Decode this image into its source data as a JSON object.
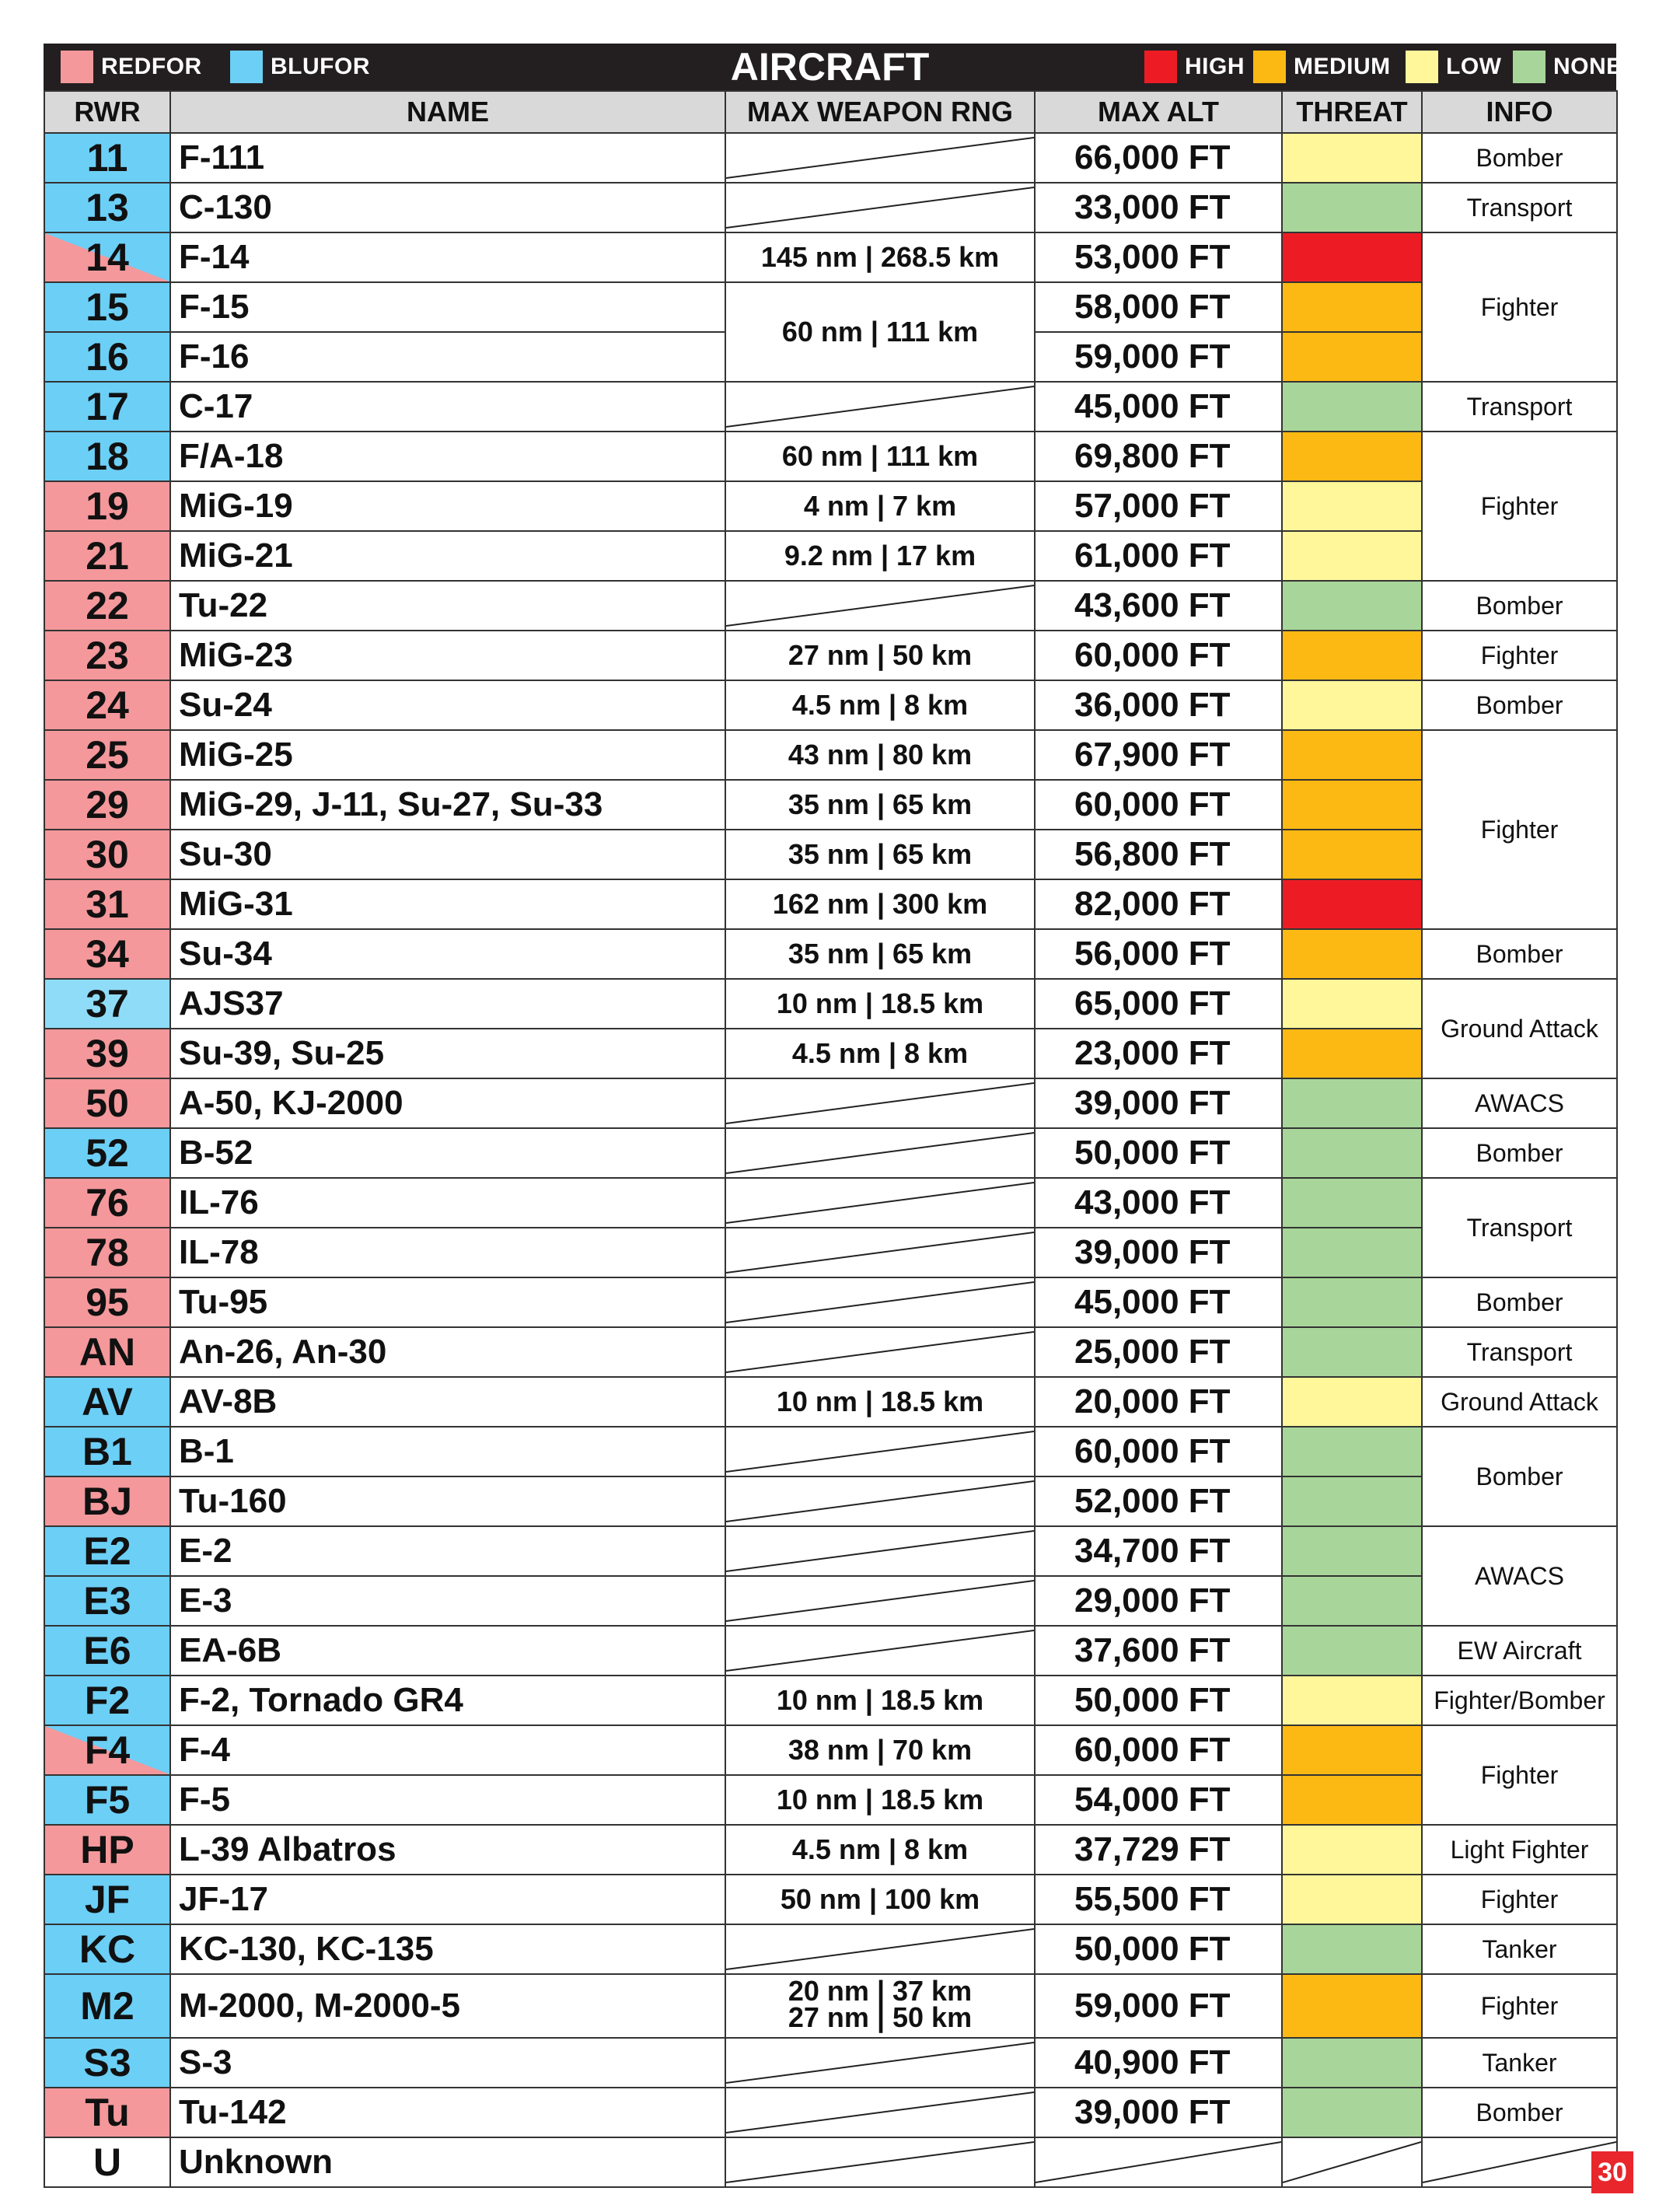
{
  "title": "AIRCRAFT",
  "page_number": "30",
  "colors": {
    "redfor": "#f4989b",
    "blufor": "#6ccff6",
    "blufor_light": "#8fdcf8",
    "high": "#ed1c24",
    "medium": "#fdb913",
    "low": "#fff79a",
    "none": "#a8d69a"
  },
  "legend": {
    "redfor": "REDFOR",
    "blufor": "BLUFOR",
    "high": "HIGH",
    "medium": "MEDIUM",
    "low": "LOW",
    "none": "NONE"
  },
  "headers": {
    "rwr": "RWR",
    "name": "NAME",
    "range": "MAX WEAPON RNG",
    "alt": "MAX ALT",
    "threat": "THREAT",
    "info": "INFO"
  },
  "rows": [
    {
      "rwr": "11",
      "side": "blufor",
      "name": "F-111",
      "range": "",
      "alt": "66,000 FT",
      "threat": "low",
      "info": "Bomber",
      "info_span": 1
    },
    {
      "rwr": "13",
      "side": "blufor",
      "name": "C-130",
      "range": "",
      "alt": "33,000 FT",
      "threat": "none",
      "info": "Transport",
      "info_span": 1
    },
    {
      "rwr": "14",
      "side": "both",
      "name": "F-14",
      "range": "145 nm | 268.5 km",
      "alt": "53,000 FT",
      "threat": "high",
      "info": "Fighter",
      "info_span": 3
    },
    {
      "rwr": "15",
      "side": "blufor",
      "name": "F-15",
      "range": "60 nm | 111 km",
      "range_span": 2,
      "alt": "58,000 FT",
      "threat": "medium"
    },
    {
      "rwr": "16",
      "side": "blufor",
      "name": "F-16",
      "alt": "59,000 FT",
      "threat": "medium",
      "range_skip": true
    },
    {
      "rwr": "17",
      "side": "blufor",
      "name": "C-17",
      "range": "",
      "alt": "45,000 FT",
      "threat": "none",
      "info": "Transport",
      "info_span": 1
    },
    {
      "rwr": "18",
      "side": "blufor",
      "name": "F/A-18",
      "range": "60 nm | 111 km",
      "alt": "69,800 FT",
      "threat": "medium",
      "info": "Fighter",
      "info_span": 3
    },
    {
      "rwr": "19",
      "side": "redfor",
      "name": "MiG-19",
      "range": "4 nm | 7 km",
      "alt": "57,000 FT",
      "threat": "low"
    },
    {
      "rwr": "21",
      "side": "redfor",
      "name": "MiG-21",
      "range": "9.2 nm | 17 km",
      "alt": "61,000 FT",
      "threat": "low"
    },
    {
      "rwr": "22",
      "side": "redfor",
      "name": "Tu-22",
      "range": "",
      "alt": "43,600 FT",
      "threat": "none",
      "info": "Bomber",
      "info_span": 1
    },
    {
      "rwr": "23",
      "side": "redfor",
      "name": "MiG-23",
      "range": "27 nm | 50 km",
      "alt": "60,000 FT",
      "threat": "medium",
      "info": "Fighter",
      "info_span": 1
    },
    {
      "rwr": "24",
      "side": "redfor",
      "name": "Su-24",
      "range": "4.5 nm | 8 km",
      "alt": "36,000 FT",
      "threat": "low",
      "info": "Bomber",
      "info_span": 1
    },
    {
      "rwr": "25",
      "side": "redfor",
      "name": "MiG-25",
      "range": "43 nm | 80 km",
      "alt": "67,900 FT",
      "threat": "medium",
      "info": "Fighter",
      "info_span": 4
    },
    {
      "rwr": "29",
      "side": "redfor",
      "name": "MiG-29, J-11, Su-27, Su-33",
      "range": "35 nm | 65 km",
      "alt": "60,000 FT",
      "threat": "medium"
    },
    {
      "rwr": "30",
      "side": "redfor",
      "name": "Su-30",
      "range": "35 nm | 65 km",
      "alt": "56,800 FT",
      "threat": "medium"
    },
    {
      "rwr": "31",
      "side": "redfor",
      "name": "MiG-31",
      "range": "162 nm | 300 km",
      "alt": "82,000 FT",
      "threat": "high"
    },
    {
      "rwr": "34",
      "side": "redfor",
      "name": "Su-34",
      "range": "35 nm | 65 km",
      "alt": "56,000 FT",
      "threat": "medium",
      "info": "Bomber",
      "info_span": 1
    },
    {
      "rwr": "37",
      "side": "blufor_light",
      "name": "AJS37",
      "range": "10 nm | 18.5 km",
      "alt": "65,000 FT",
      "threat": "low",
      "info": "Ground Attack",
      "info_span": 2
    },
    {
      "rwr": "39",
      "side": "redfor",
      "name": "Su-39, Su-25",
      "range": "4.5 nm | 8 km",
      "alt": "23,000 FT",
      "threat": "medium"
    },
    {
      "rwr": "50",
      "side": "redfor",
      "name": "A-50, KJ-2000",
      "range": "",
      "alt": "39,000 FT",
      "threat": "none",
      "info": "AWACS",
      "info_span": 1
    },
    {
      "rwr": "52",
      "side": "blufor",
      "name": "B-52",
      "range": "",
      "alt": "50,000 FT",
      "threat": "none",
      "info": "Bomber",
      "info_span": 1
    },
    {
      "rwr": "76",
      "side": "redfor",
      "name": "IL-76",
      "range": "",
      "alt": "43,000 FT",
      "threat": "none",
      "info": "Transport",
      "info_span": 2
    },
    {
      "rwr": "78",
      "side": "redfor",
      "name": "IL-78",
      "range": "",
      "alt": "39,000 FT",
      "threat": "none"
    },
    {
      "rwr": "95",
      "side": "redfor",
      "name": "Tu-95",
      "range": "",
      "alt": "45,000 FT",
      "threat": "none",
      "info": "Bomber",
      "info_span": 1
    },
    {
      "rwr": "AN",
      "side": "redfor",
      "name": "An-26, An-30",
      "range": "",
      "alt": "25,000 FT",
      "threat": "none",
      "info": "Transport",
      "info_span": 1
    },
    {
      "rwr": "AV",
      "side": "blufor",
      "name": "AV-8B",
      "range": "10 nm | 18.5 km",
      "alt": "20,000 FT",
      "threat": "low",
      "info": "Ground Attack",
      "info_span": 1
    },
    {
      "rwr": "B1",
      "side": "blufor",
      "name": "B-1",
      "range": "",
      "alt": "60,000 FT",
      "threat": "none",
      "info": "Bomber",
      "info_span": 2
    },
    {
      "rwr": "BJ",
      "side": "redfor",
      "name": "Tu-160",
      "range": "",
      "alt": "52,000 FT",
      "threat": "none"
    },
    {
      "rwr": "E2",
      "side": "blufor",
      "name": "E-2",
      "range": "",
      "alt": "34,700 FT",
      "threat": "none",
      "info": "AWACS",
      "info_span": 2
    },
    {
      "rwr": "E3",
      "side": "blufor",
      "name": "E-3",
      "range": "",
      "alt": "29,000 FT",
      "threat": "none"
    },
    {
      "rwr": "E6",
      "side": "blufor",
      "name": "EA-6B",
      "range": "",
      "alt": "37,600 FT",
      "threat": "none",
      "info": "EW Aircraft",
      "info_span": 1
    },
    {
      "rwr": "F2",
      "side": "blufor",
      "name": "F-2, Tornado GR4",
      "range": "10 nm | 18.5 km",
      "alt": "50,000 FT",
      "threat": "low",
      "info": "Fighter/Bomber",
      "info_span": 1
    },
    {
      "rwr": "F4",
      "side": "both",
      "name": "F-4",
      "range": "38 nm | 70 km",
      "alt": "60,000 FT",
      "threat": "medium",
      "info": "Fighter",
      "info_span": 2
    },
    {
      "rwr": "F5",
      "side": "blufor",
      "name": "F-5",
      "range": "10 nm | 18.5 km",
      "alt": "54,000 FT",
      "threat": "medium"
    },
    {
      "rwr": "HP",
      "side": "redfor",
      "name": "L-39 Albatros",
      "range": "4.5 nm | 8 km",
      "alt": "37,729 FT",
      "threat": "low",
      "info": "Light Fighter",
      "info_span": 1
    },
    {
      "rwr": "JF",
      "side": "blufor",
      "name": "JF-17",
      "range": "50 nm | 100 km",
      "alt": "55,500 FT",
      "threat": "low",
      "info": "Fighter",
      "info_span": 1
    },
    {
      "rwr": "KC",
      "side": "blufor",
      "name": "KC-130, KC-135",
      "range": "",
      "alt": "50,000 FT",
      "threat": "none",
      "info": "Tanker",
      "info_span": 1
    },
    {
      "rwr": "M2",
      "side": "blufor",
      "name": "M-2000, M-2000-5",
      "range_lines": [
        "20 nm | 37 km",
        "27 nm | 50 km"
      ],
      "alt": "59,000 FT",
      "threat": "medium",
      "info": "Fighter",
      "info_span": 1,
      "tall": true
    },
    {
      "rwr": "S3",
      "side": "blufor",
      "name": "S-3",
      "range": "",
      "alt": "40,900 FT",
      "threat": "none",
      "info": "Tanker",
      "info_span": 1
    },
    {
      "rwr": "Tu",
      "side": "redfor",
      "name": "Tu-142",
      "range": "",
      "alt": "39,000 FT",
      "threat": "none",
      "info": "Bomber",
      "info_span": 1
    },
    {
      "rwr": "U",
      "side": "unknown",
      "name": "Unknown",
      "range": "",
      "alt": "",
      "threat": "unknown",
      "info": "",
      "info_span": 1,
      "info_blank": true
    }
  ]
}
